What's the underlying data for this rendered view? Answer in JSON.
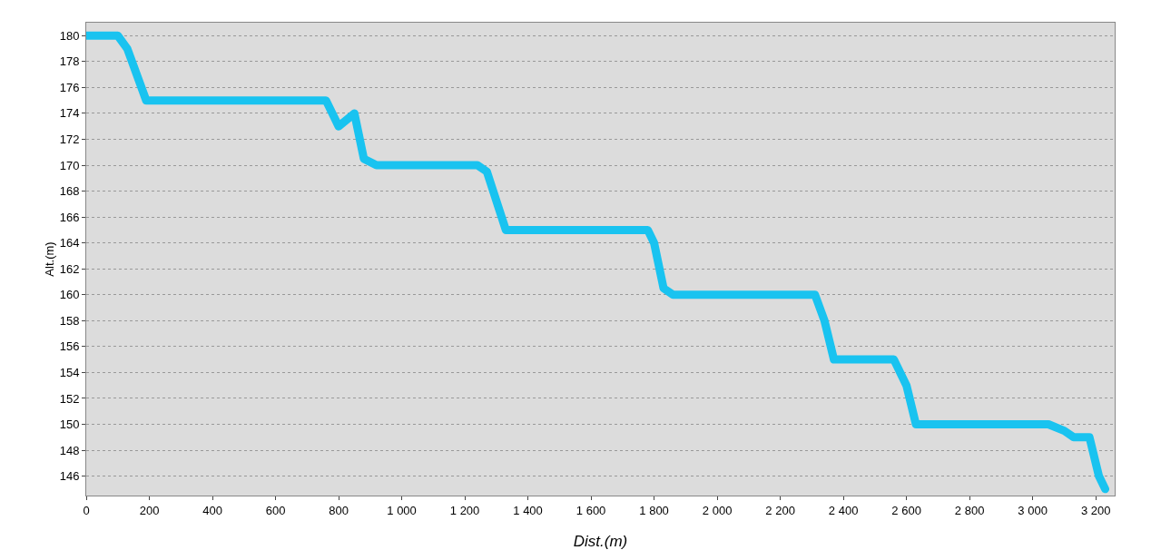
{
  "chart_data": {
    "type": "line",
    "xlabel": "Dist.(m)",
    "ylabel": "Alt.(m)",
    "x": [
      0,
      100,
      130,
      190,
      760,
      790,
      800,
      850,
      880,
      920,
      1240,
      1270,
      1330,
      1780,
      1800,
      1830,
      1860,
      2310,
      2340,
      2370,
      2560,
      2600,
      2630,
      2700,
      3000,
      3050,
      3100,
      3130,
      3180,
      3210,
      3230
    ],
    "series": [
      {
        "color": "#19c3f0",
        "values": [
          180,
          180,
          179,
          175,
          175,
          173.5,
          173,
          174,
          170.5,
          170,
          170,
          169.5,
          165,
          165,
          164,
          160.5,
          160,
          160,
          158,
          155,
          155,
          153,
          150,
          150,
          150,
          150,
          149.5,
          149,
          149,
          146,
          145
        ]
      }
    ],
    "xlim": [
      0,
      3260
    ],
    "ylim": [
      144.5,
      181
    ],
    "xticks": [
      0,
      200,
      400,
      600,
      800,
      {
        "value": 1000,
        "label": "1 000"
      },
      {
        "value": 1200,
        "label": "1 200"
      },
      {
        "value": 1400,
        "label": "1 400"
      },
      {
        "value": 1600,
        "label": "1 600"
      },
      {
        "value": 1800,
        "label": "1 800"
      },
      {
        "value": 2000,
        "label": "2 000"
      },
      {
        "value": 2200,
        "label": "2 200"
      },
      {
        "value": 2400,
        "label": "2 400"
      },
      {
        "value": 2600,
        "label": "2 600"
      },
      {
        "value": 2800,
        "label": "2 800"
      },
      {
        "value": 3000,
        "label": "3 000"
      },
      {
        "value": 3200,
        "label": "3 200"
      }
    ],
    "yticks": [
      146,
      148,
      150,
      152,
      154,
      156,
      158,
      160,
      162,
      164,
      166,
      168,
      170,
      172,
      174,
      176,
      178,
      180
    ],
    "grid": "y",
    "line_style": "solid"
  }
}
